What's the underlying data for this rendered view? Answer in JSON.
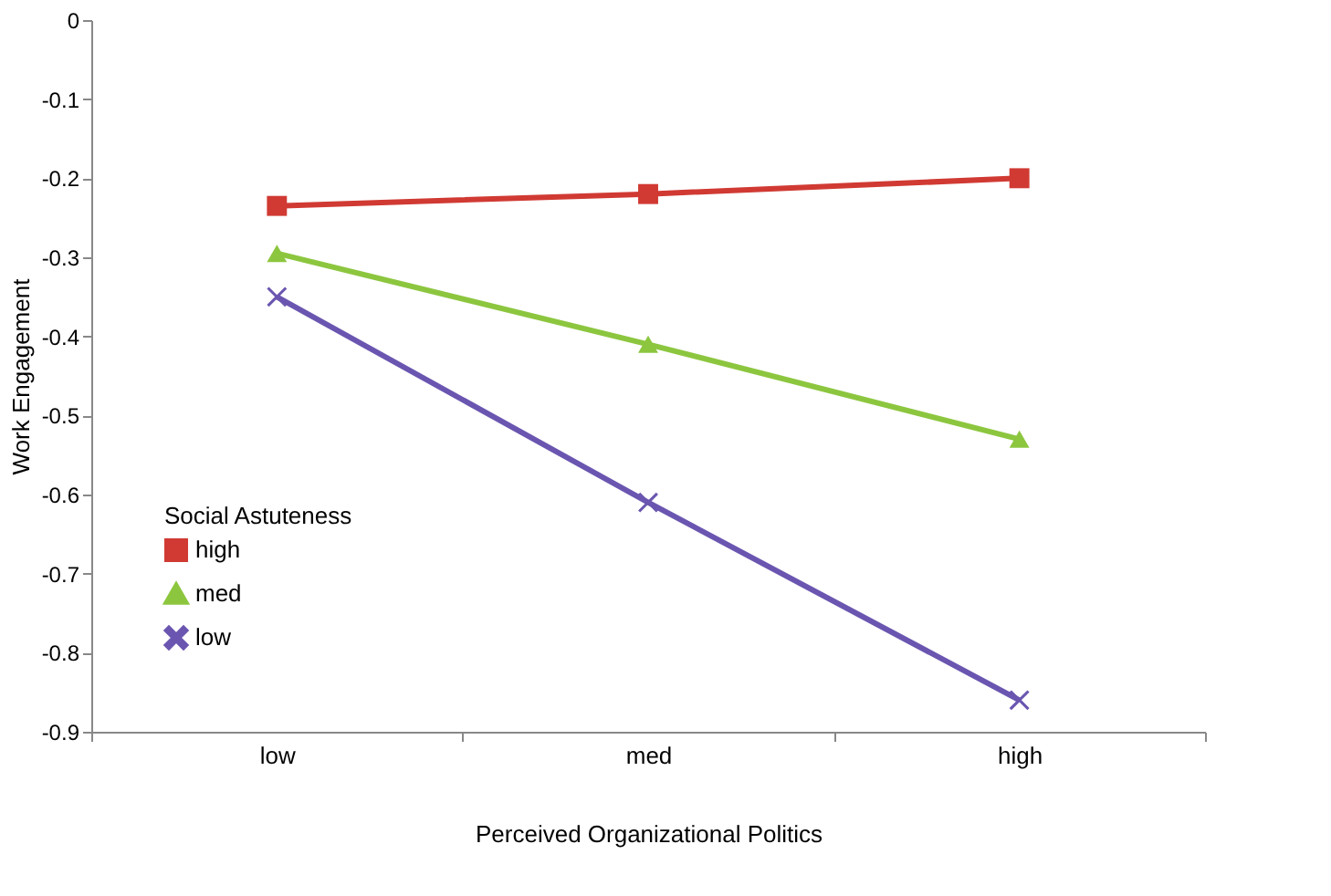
{
  "chart_data": {
    "type": "line",
    "xlabel": "Perceived Organizational Politics",
    "ylabel": "Work Engagement",
    "legend_title": "Social Astuteness",
    "categories": [
      "low",
      "med",
      "high"
    ],
    "series": [
      {
        "name": "high",
        "color": "#d03a33",
        "marker": "square",
        "values": [
          -0.235,
          -0.22,
          -0.2
        ]
      },
      {
        "name": "med",
        "color": "#8cc63f",
        "marker": "triangle",
        "values": [
          -0.295,
          -0.41,
          -0.53
        ]
      },
      {
        "name": "low",
        "color": "#6a56b0",
        "marker": "cross",
        "values": [
          -0.35,
          -0.61,
          -0.86
        ]
      }
    ],
    "ylim": [
      -0.9,
      0
    ],
    "yticks": [
      0,
      -0.1,
      -0.2,
      -0.3,
      -0.4,
      -0.5,
      -0.6,
      -0.7,
      -0.8,
      -0.9
    ],
    "grid": false,
    "legend": "bottom left",
    "line_style": "solid"
  }
}
